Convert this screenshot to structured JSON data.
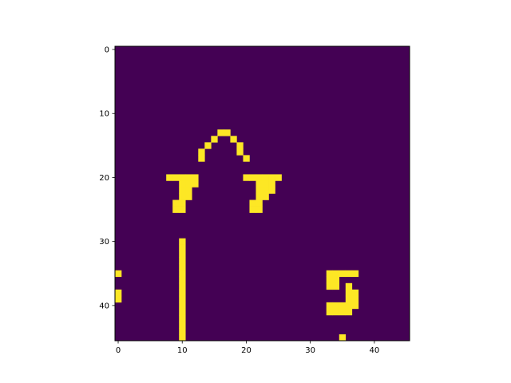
{
  "chart_data": {
    "type": "heatmap",
    "rows": 46,
    "cols": 46,
    "colormap": "viridis",
    "colors": {
      "background": "#440154",
      "foreground": "#fde725",
      "axis": "#000000"
    },
    "x_ticks": [
      0,
      10,
      20,
      30,
      40
    ],
    "y_ticks": [
      0,
      10,
      20,
      30,
      40
    ],
    "x_tick_labels": [
      "0",
      "10",
      "20",
      "30",
      "40"
    ],
    "y_tick_labels": [
      "0",
      "10",
      "20",
      "30",
      "40"
    ],
    "xlim": [
      -0.5,
      45.5
    ],
    "ylim": [
      45.5,
      -0.5
    ],
    "grid": false,
    "title": "",
    "xlabel": "",
    "ylabel": "",
    "value_range": [
      0,
      1
    ],
    "lit_cells": [
      [
        13,
        16
      ],
      [
        13,
        17
      ],
      [
        14,
        15
      ],
      [
        14,
        18
      ],
      [
        15,
        14
      ],
      [
        15,
        19
      ],
      [
        16,
        13
      ],
      [
        16,
        19
      ],
      [
        17,
        13
      ],
      [
        17,
        20
      ],
      [
        20,
        8
      ],
      [
        20,
        9
      ],
      [
        20,
        10
      ],
      [
        20,
        11
      ],
      [
        20,
        12
      ],
      [
        20,
        20
      ],
      [
        20,
        21
      ],
      [
        20,
        22
      ],
      [
        20,
        23
      ],
      [
        20,
        24
      ],
      [
        20,
        25
      ],
      [
        21,
        10
      ],
      [
        21,
        11
      ],
      [
        21,
        12
      ],
      [
        21,
        22
      ],
      [
        21,
        23
      ],
      [
        21,
        24
      ],
      [
        22,
        10
      ],
      [
        22,
        11
      ],
      [
        22,
        22
      ],
      [
        22,
        23
      ],
      [
        22,
        24
      ],
      [
        23,
        10
      ],
      [
        23,
        11
      ],
      [
        23,
        22
      ],
      [
        23,
        23
      ],
      [
        24,
        9
      ],
      [
        24,
        10
      ],
      [
        24,
        21
      ],
      [
        24,
        22
      ],
      [
        25,
        9
      ],
      [
        25,
        10
      ],
      [
        25,
        21
      ],
      [
        25,
        22
      ],
      [
        30,
        10
      ],
      [
        31,
        10
      ],
      [
        32,
        10
      ],
      [
        33,
        10
      ],
      [
        34,
        10
      ],
      [
        35,
        10
      ],
      [
        36,
        10
      ],
      [
        37,
        10
      ],
      [
        38,
        10
      ],
      [
        39,
        10
      ],
      [
        40,
        10
      ],
      [
        41,
        10
      ],
      [
        42,
        10
      ],
      [
        43,
        10
      ],
      [
        44,
        10
      ],
      [
        45,
        10
      ],
      [
        35,
        0
      ],
      [
        38,
        0
      ],
      [
        39,
        0
      ],
      [
        35,
        33
      ],
      [
        35,
        34
      ],
      [
        35,
        35
      ],
      [
        35,
        36
      ],
      [
        35,
        37
      ],
      [
        36,
        33
      ],
      [
        36,
        34
      ],
      [
        37,
        33
      ],
      [
        37,
        34
      ],
      [
        37,
        36
      ],
      [
        38,
        36
      ],
      [
        38,
        37
      ],
      [
        39,
        36
      ],
      [
        39,
        37
      ],
      [
        40,
        33
      ],
      [
        40,
        34
      ],
      [
        40,
        35
      ],
      [
        40,
        36
      ],
      [
        40,
        37
      ],
      [
        41,
        33
      ],
      [
        41,
        34
      ],
      [
        41,
        35
      ],
      [
        41,
        36
      ],
      [
        45,
        35
      ]
    ]
  }
}
